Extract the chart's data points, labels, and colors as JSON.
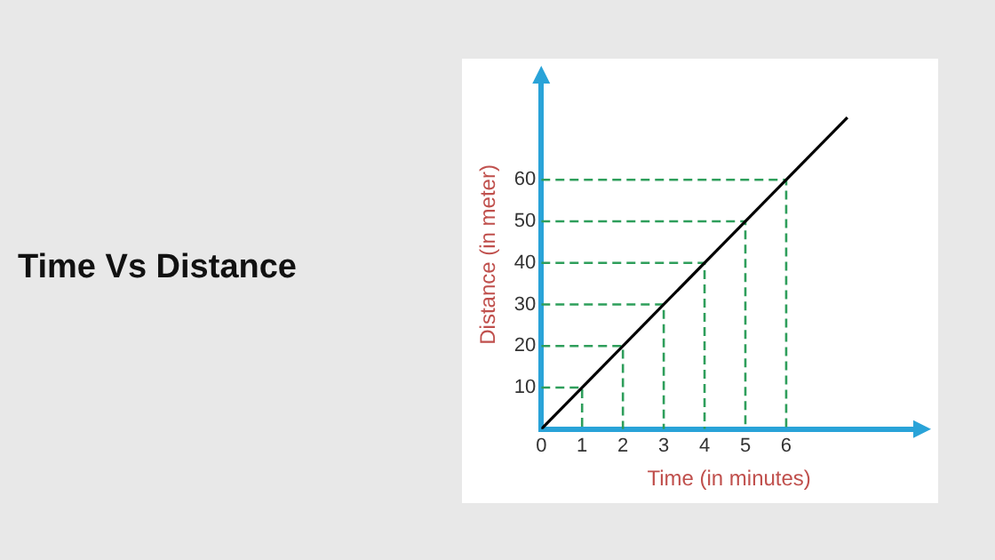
{
  "chart_data": {
    "type": "line",
    "title": "Time Vs Distance",
    "xlabel": "Time (in minutes)",
    "ylabel": "Distance (in meter)",
    "xlim": [
      0,
      9.2
    ],
    "ylim": [
      0,
      84
    ],
    "xticks": [
      {
        "value": 0,
        "label": "0"
      },
      1,
      2,
      3,
      4,
      5,
      6
    ],
    "yticks": [
      10,
      20,
      30,
      40,
      50,
      60
    ],
    "grid": false,
    "legend": false,
    "marker": "none",
    "series": [
      {
        "color": "#000000",
        "x": [
          0,
          7.5
        ],
        "values": [
          0,
          75
        ]
      },
      {
        "color": "#2e9e5b",
        "line_style": "dashed",
        "x": [
          0,
          1,
          1
        ],
        "values": [
          10,
          10,
          0
        ]
      },
      {
        "color": "#2e9e5b",
        "line_style": "dashed",
        "x": [
          0,
          2,
          2
        ],
        "values": [
          20,
          20,
          0
        ]
      },
      {
        "color": "#2e9e5b",
        "line_style": "dashed",
        "x": [
          0,
          3,
          3
        ],
        "values": [
          30,
          30,
          0
        ]
      },
      {
        "color": "#2e9e5b",
        "line_style": "dashed",
        "x": [
          0,
          4,
          4
        ],
        "values": [
          40,
          40,
          0
        ]
      },
      {
        "color": "#2e9e5b",
        "line_style": "dashed",
        "x": [
          0,
          5,
          5
        ],
        "values": [
          50,
          50,
          0
        ]
      },
      {
        "color": "#2e9e5b",
        "line_style": "dashed",
        "x": [
          0,
          6,
          6
        ],
        "values": [
          60,
          60,
          0
        ]
      }
    ]
  }
}
